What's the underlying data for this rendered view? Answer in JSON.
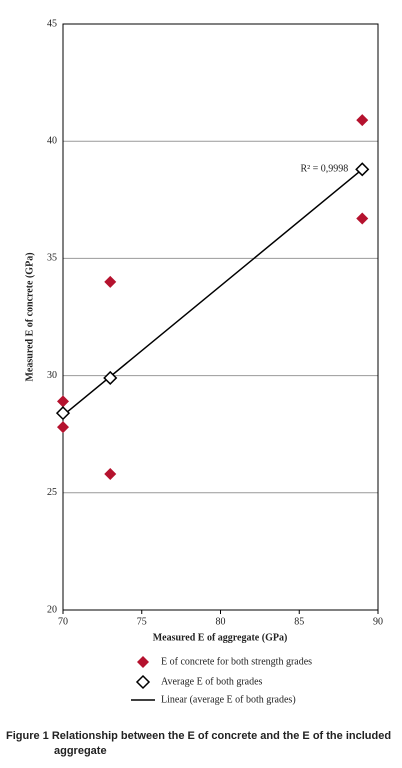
{
  "chart_data": {
    "type": "scatter",
    "xlabel": "Measured E of aggregate (GPa)",
    "ylabel": "Measured E of concrete (GPa)",
    "xlim": [
      70,
      90
    ],
    "xticks": [
      70,
      75,
      80,
      85,
      90
    ],
    "ylim": [
      20,
      45
    ],
    "yticks": [
      20,
      25,
      30,
      35,
      40,
      45
    ],
    "grid": true,
    "series": [
      {
        "name": "E of concrete for both strength grades",
        "color": "#b5122e",
        "marker": "diamond-filled",
        "x": [
          70,
          70,
          73,
          73,
          89,
          89
        ],
        "values": [
          28.9,
          27.8,
          34.0,
          25.8,
          40.9,
          36.7
        ]
      },
      {
        "name": "Average E of both grades",
        "color": "#000000",
        "marker": "diamond-open",
        "x": [
          70,
          73,
          89
        ],
        "values": [
          28.4,
          29.9,
          38.8
        ]
      },
      {
        "name": "Linear (average E of both grades)",
        "color": "#000000",
        "marker": "line",
        "x": [
          70,
          89
        ],
        "values": [
          28.3,
          38.8
        ]
      }
    ],
    "annotations": [
      {
        "text": "R² = 0,9998",
        "x": 89,
        "y": 38.8
      }
    ],
    "caption": "Figure 1 Relationship between the E of concrete and the E of the included aggregate"
  }
}
